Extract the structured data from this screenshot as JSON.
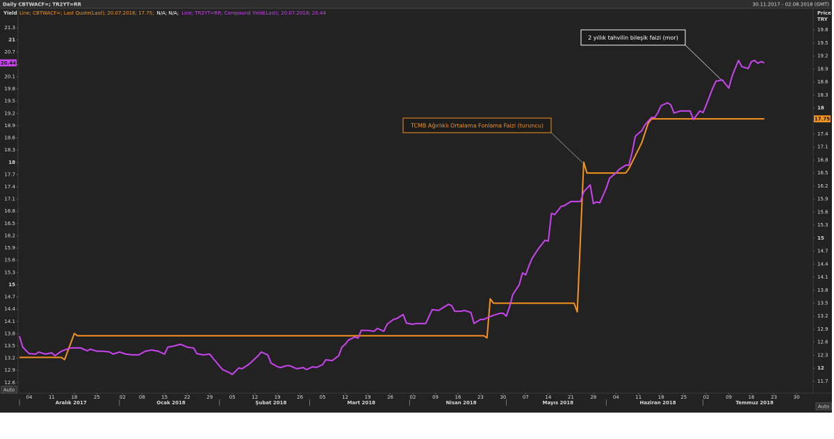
{
  "chart_data": {
    "type": "line",
    "title": "Daily CBTWACF=; TR2YT=RR",
    "date_range": "30.11.2017 - 02.08.2018 (GMT)",
    "ylabel": "Yield",
    "y2label": [
      "Price",
      "TRY"
    ],
    "legend_note": "N/A; N/A;",
    "auto_label": "Auto",
    "xlim": [
      "2017-11-30",
      "2018-08-02"
    ],
    "ylim": [
      12.41,
      21.47
    ],
    "y2lim": [
      11.49,
      20.01
    ],
    "yticks": [
      12.6,
      12.9,
      13.2,
      13.5,
      13.8,
      14.1,
      14.4,
      14.7,
      15,
      15.3,
      15.6,
      15.9,
      16.2,
      16.5,
      16.8,
      17.1,
      17.4,
      17.7,
      18,
      18.3,
      18.6,
      18.9,
      19.2,
      19.5,
      19.8,
      20.1,
      20.4,
      20.7,
      21,
      21.3
    ],
    "y2ticks": [
      11.7,
      12,
      12.3,
      12.6,
      12.9,
      13.2,
      13.5,
      13.8,
      14.1,
      14.4,
      14.7,
      15,
      15.3,
      15.6,
      15.9,
      16.2,
      16.5,
      16.8,
      17.1,
      17.4,
      17.7,
      18,
      18.3,
      18.6,
      18.9,
      19.2,
      19.5,
      19.8
    ],
    "xticks": [
      {
        "value": "2017-12-04",
        "label": "04"
      },
      {
        "value": "2017-12-11",
        "label": "11"
      },
      {
        "value": "2017-12-18",
        "label": "18"
      },
      {
        "value": "2017-12-25",
        "label": "25"
      },
      {
        "value": "2018-01-02",
        "label": "02"
      },
      {
        "value": "2018-01-08",
        "label": "08"
      },
      {
        "value": "2018-01-15",
        "label": "15"
      },
      {
        "value": "2018-01-22",
        "label": "22"
      },
      {
        "value": "2018-01-29",
        "label": "29"
      },
      {
        "value": "2018-02-05",
        "label": "05"
      },
      {
        "value": "2018-02-12",
        "label": "12"
      },
      {
        "value": "2018-02-19",
        "label": "19"
      },
      {
        "value": "2018-02-26",
        "label": "26"
      },
      {
        "value": "2018-03-05",
        "label": "05"
      },
      {
        "value": "2018-03-12",
        "label": "12"
      },
      {
        "value": "2018-03-19",
        "label": "19"
      },
      {
        "value": "2018-03-26",
        "label": "26"
      },
      {
        "value": "2018-04-02",
        "label": "02"
      },
      {
        "value": "2018-04-09",
        "label": "09"
      },
      {
        "value": "2018-04-16",
        "label": "16"
      },
      {
        "value": "2018-04-23",
        "label": "23"
      },
      {
        "value": "2018-04-30",
        "label": "30"
      },
      {
        "value": "2018-05-07",
        "label": "07"
      },
      {
        "value": "2018-05-14",
        "label": "14"
      },
      {
        "value": "2018-05-21",
        "label": "21"
      },
      {
        "value": "2018-05-28",
        "label": "28"
      },
      {
        "value": "2018-06-04",
        "label": "04"
      },
      {
        "value": "2018-06-11",
        "label": "11"
      },
      {
        "value": "2018-06-18",
        "label": "18"
      },
      {
        "value": "2018-06-25",
        "label": "25"
      },
      {
        "value": "2018-07-02",
        "label": "02"
      },
      {
        "value": "2018-07-09",
        "label": "09"
      },
      {
        "value": "2018-07-16",
        "label": "16"
      },
      {
        "value": "2018-07-23",
        "label": "23"
      },
      {
        "value": "2018-07-30",
        "label": "30"
      }
    ],
    "month_labels": [
      {
        "value": "2017-12",
        "label": "Aralık 2017"
      },
      {
        "value": "2018-01",
        "label": "Ocak 2018"
      },
      {
        "value": "2018-02",
        "label": "Şubat 2018"
      },
      {
        "value": "2018-03",
        "label": "Mart 2018"
      },
      {
        "value": "2018-04",
        "label": "Nisan 2018"
      },
      {
        "value": "2018-05",
        "label": "Mayıs 2018"
      },
      {
        "value": "2018-06",
        "label": "Haziran 2018"
      },
      {
        "value": "2018-07",
        "label": "Temmuz 2018"
      }
    ],
    "annotations": [
      {
        "text": "TCMB Ağırlıklı Ortalama Fonlama Faizi (turuncu)",
        "color": "#f7941d"
      },
      {
        "text": "2 yıllık tahvilin bileşik faizi (mor)",
        "color": "#ffffff"
      }
    ],
    "series": [
      {
        "name": "Line; CBTWACF=; Last Quote(Last); 20.07.2018; 17.75;",
        "color": "#f7941d",
        "axis": "y2",
        "x": [
          "2017-12-01",
          "2017-12-14",
          "2017-12-15",
          "2017-12-18",
          "2017-12-19",
          "2018-04-24",
          "2018-04-25",
          "2018-04-26",
          "2018-04-27",
          "2018-05-22",
          "2018-05-23",
          "2018-05-25",
          "2018-05-26",
          "2018-06-07",
          "2018-06-08",
          "2018-06-10",
          "2018-06-12",
          "2018-06-14",
          "2018-06-15",
          "2018-07-20"
        ],
        "values": [
          12.25,
          12.25,
          12.2,
          12.8,
          12.75,
          12.75,
          12.7,
          13.6,
          13.5,
          13.5,
          13.3,
          16.75,
          16.5,
          16.5,
          16.6,
          16.9,
          17.2,
          17.65,
          17.75,
          17.75
        ]
      },
      {
        "name": "Line; TR2YT=RR; Compound Yield(Last); 20.07.2018; 20.44",
        "color": "#cc44f2",
        "axis": "y",
        "x": [
          "2017-12-01",
          "2017-12-02",
          "2017-12-04",
          "2017-12-06",
          "2017-12-07",
          "2017-12-09",
          "2017-12-11",
          "2017-12-12",
          "2017-12-14",
          "2017-12-16",
          "2017-12-17",
          "2017-12-19",
          "2017-12-20",
          "2017-12-22",
          "2017-12-23",
          "2017-12-25",
          "2017-12-27",
          "2017-12-29",
          "2017-12-30",
          "2018-01-01",
          "2018-01-03",
          "2018-01-05",
          "2018-01-07",
          "2018-01-09",
          "2018-01-11",
          "2018-01-13",
          "2018-01-15",
          "2018-01-16",
          "2018-01-18",
          "2018-01-20",
          "2018-01-22",
          "2018-01-24",
          "2018-01-25",
          "2018-01-27",
          "2018-01-29",
          "2018-01-30",
          "2018-02-01",
          "2018-02-02",
          "2018-02-04",
          "2018-02-05",
          "2018-02-07",
          "2018-02-08",
          "2018-02-10",
          "2018-02-11",
          "2018-02-13",
          "2018-02-14",
          "2018-02-16",
          "2018-02-17",
          "2018-02-19",
          "2018-02-20",
          "2018-02-22",
          "2018-02-23",
          "2018-02-25",
          "2018-02-27",
          "2018-02-28",
          "2018-03-02",
          "2018-03-03",
          "2018-03-05",
          "2018-03-06",
          "2018-03-08",
          "2018-03-10",
          "2018-03-11",
          "2018-03-12",
          "2018-03-13",
          "2018-03-15",
          "2018-03-16",
          "2018-03-17",
          "2018-03-19",
          "2018-03-21",
          "2018-03-22",
          "2018-03-24",
          "2018-03-25",
          "2018-03-27",
          "2018-03-28",
          "2018-03-30",
          "2018-03-31",
          "2018-04-02",
          "2018-04-03",
          "2018-04-05",
          "2018-04-06",
          "2018-04-08",
          "2018-04-10",
          "2018-04-11",
          "2018-04-13",
          "2018-04-14",
          "2018-04-15",
          "2018-04-17",
          "2018-04-18",
          "2018-04-20",
          "2018-04-21",
          "2018-04-23",
          "2018-04-24",
          "2018-04-26",
          "2018-04-27",
          "2018-04-29",
          "2018-04-30",
          "2018-05-01",
          "2018-05-02",
          "2018-05-03",
          "2018-05-05",
          "2018-05-06",
          "2018-05-07",
          "2018-05-08",
          "2018-05-09",
          "2018-05-11",
          "2018-05-13",
          "2018-05-14",
          "2018-05-15",
          "2018-05-16",
          "2018-05-18",
          "2018-05-19",
          "2018-05-21",
          "2018-05-22",
          "2018-05-24",
          "2018-05-25",
          "2018-05-27",
          "2018-05-28",
          "2018-05-29",
          "2018-05-30",
          "2018-06-01",
          "2018-06-02",
          "2018-06-04",
          "2018-06-05",
          "2018-06-07",
          "2018-06-08",
          "2018-06-09",
          "2018-06-10",
          "2018-06-12",
          "2018-06-13",
          "2018-06-15",
          "2018-06-16",
          "2018-06-17",
          "2018-06-18",
          "2018-06-20",
          "2018-06-21",
          "2018-06-22",
          "2018-06-24",
          "2018-06-25",
          "2018-06-27",
          "2018-06-28",
          "2018-06-30",
          "2018-07-01",
          "2018-07-02",
          "2018-07-04",
          "2018-07-05",
          "2018-07-07",
          "2018-07-09",
          "2018-07-10",
          "2018-07-11",
          "2018-07-12",
          "2018-07-13",
          "2018-07-15",
          "2018-07-16",
          "2018-07-17",
          "2018-07-18",
          "2018-07-19",
          "2018-07-20"
        ],
        "values": [
          13.74,
          13.47,
          13.31,
          13.3,
          13.35,
          13.3,
          13.33,
          13.26,
          13.37,
          13.43,
          13.45,
          13.45,
          13.45,
          13.38,
          13.42,
          13.37,
          13.37,
          13.35,
          13.3,
          13.35,
          13.3,
          13.28,
          13.28,
          13.37,
          13.4,
          13.37,
          13.3,
          13.47,
          13.5,
          13.54,
          13.47,
          13.45,
          13.31,
          13.28,
          13.3,
          13.2,
          13.01,
          12.92,
          12.85,
          12.8,
          12.96,
          12.94,
          13.04,
          13.11,
          13.26,
          13.35,
          13.28,
          13.08,
          12.99,
          12.97,
          13.02,
          13.01,
          12.94,
          12.97,
          12.92,
          12.99,
          12.97,
          13.04,
          13.16,
          13.14,
          13.26,
          13.47,
          13.54,
          13.64,
          13.72,
          13.69,
          13.88,
          13.88,
          13.86,
          13.93,
          13.86,
          14.03,
          14.15,
          14.17,
          14.27,
          14.06,
          14.03,
          14.05,
          14.05,
          14.05,
          14.39,
          14.37,
          14.42,
          14.52,
          14.49,
          14.35,
          14.35,
          14.37,
          14.32,
          14.05,
          14.15,
          14.15,
          14.22,
          14.25,
          14.3,
          14.3,
          14.23,
          14.46,
          14.76,
          15.0,
          15.29,
          15.24,
          15.46,
          15.65,
          15.89,
          16.09,
          16.07,
          16.75,
          16.72,
          16.92,
          16.94,
          17.04,
          17.04,
          17.04,
          17.28,
          17.45,
          16.99,
          17.03,
          17.01,
          17.37,
          17.61,
          17.74,
          17.83,
          17.93,
          17.93,
          18.24,
          18.64,
          18.78,
          18.92,
          19.1,
          19.1,
          19.22,
          19.39,
          19.46,
          19.41,
          19.21,
          19.26,
          19.26,
          19.26,
          19.05,
          19.26,
          19.22,
          19.41,
          19.82,
          19.99,
          20.02,
          19.82,
          20.11,
          20.31,
          20.5,
          20.35,
          20.3,
          20.47,
          20.5,
          20.43,
          20.47,
          20.44
        ]
      }
    ]
  }
}
